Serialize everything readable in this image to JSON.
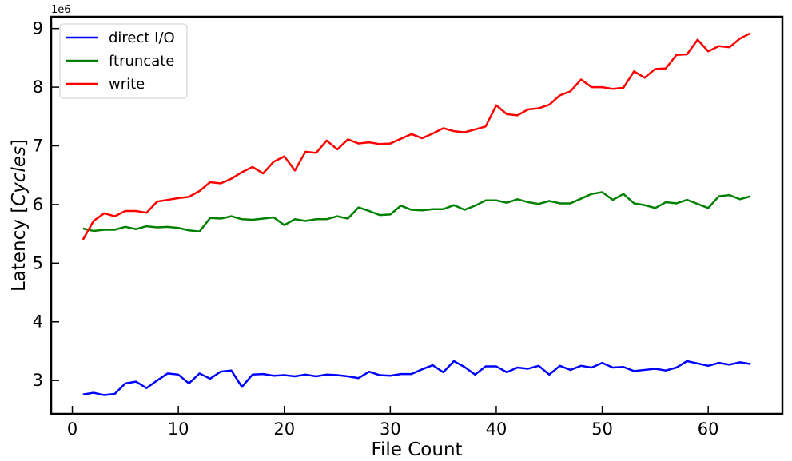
{
  "chart_data": {
    "type": "line",
    "xlabel": "File Count",
    "ylabel_main": "Latency [",
    "ylabel_italic": "Cycles",
    "ylabel_end": "]",
    "y_offset_label": "1e6",
    "xlim": [
      -2,
      67
    ],
    "ylim": [
      2.43,
      9.2
    ],
    "y_scale": 1000000,
    "xticks": [
      0,
      10,
      20,
      30,
      40,
      50,
      60
    ],
    "yticks": [
      3,
      4,
      5,
      6,
      7,
      8,
      9
    ],
    "xtick_labels": [
      "0",
      "10",
      "20",
      "30",
      "40",
      "50",
      "60"
    ],
    "ytick_labels": [
      "3",
      "4",
      "5",
      "6",
      "7",
      "8",
      "9"
    ],
    "legend_position": "top-left",
    "grid": false,
    "x": [
      1,
      2,
      3,
      4,
      5,
      6,
      7,
      8,
      9,
      10,
      11,
      12,
      13,
      14,
      15,
      16,
      17,
      18,
      19,
      20,
      21,
      22,
      23,
      24,
      25,
      26,
      27,
      28,
      29,
      30,
      31,
      32,
      33,
      34,
      35,
      36,
      37,
      38,
      39,
      40,
      41,
      42,
      43,
      44,
      45,
      46,
      47,
      48,
      49,
      50,
      51,
      52,
      53,
      54,
      55,
      56,
      57,
      58,
      59,
      60,
      61,
      62,
      63,
      64
    ],
    "series": [
      {
        "name": "direct I/O",
        "color": "#0000ff",
        "values": [
          2.76,
          2.79,
          2.75,
          2.77,
          2.95,
          2.98,
          2.87,
          3.0,
          3.12,
          3.1,
          2.95,
          3.12,
          3.03,
          3.15,
          3.17,
          2.89,
          3.1,
          3.11,
          3.08,
          3.09,
          3.07,
          3.1,
          3.07,
          3.1,
          3.09,
          3.07,
          3.04,
          3.15,
          3.09,
          3.08,
          3.11,
          3.11,
          3.19,
          3.26,
          3.14,
          3.33,
          3.23,
          3.1,
          3.24,
          3.24,
          3.14,
          3.22,
          3.2,
          3.25,
          3.1,
          3.25,
          3.18,
          3.25,
          3.22,
          3.3,
          3.22,
          3.23,
          3.16,
          3.18,
          3.2,
          3.17,
          3.22,
          3.33,
          3.29,
          3.25,
          3.3,
          3.27,
          3.31,
          3.28
        ]
      },
      {
        "name": "ftruncate",
        "color": "#008000",
        "values": [
          5.59,
          5.55,
          5.57,
          5.57,
          5.62,
          5.58,
          5.63,
          5.61,
          5.62,
          5.6,
          5.56,
          5.54,
          5.77,
          5.76,
          5.8,
          5.75,
          5.74,
          5.76,
          5.78,
          5.65,
          5.75,
          5.72,
          5.75,
          5.75,
          5.8,
          5.76,
          5.95,
          5.89,
          5.82,
          5.83,
          5.98,
          5.91,
          5.9,
          5.92,
          5.92,
          5.99,
          5.91,
          5.98,
          6.07,
          6.07,
          6.03,
          6.09,
          6.04,
          6.01,
          6.06,
          6.02,
          6.02,
          6.1,
          6.18,
          6.21,
          6.08,
          6.18,
          6.02,
          5.99,
          5.94,
          6.04,
          6.02,
          6.08,
          6.01,
          5.94,
          6.14,
          6.16,
          6.09,
          6.14
        ]
      },
      {
        "name": "write",
        "color": "#ff0000",
        "values": [
          5.4,
          5.72,
          5.85,
          5.8,
          5.89,
          5.89,
          5.86,
          6.05,
          6.08,
          6.11,
          6.13,
          6.23,
          6.38,
          6.36,
          6.44,
          6.55,
          6.64,
          6.53,
          6.73,
          6.82,
          6.58,
          6.9,
          6.88,
          7.09,
          6.94,
          7.11,
          7.04,
          7.06,
          7.03,
          7.04,
          7.12,
          7.2,
          7.13,
          7.21,
          7.3,
          7.25,
          7.23,
          7.28,
          7.33,
          7.69,
          7.54,
          7.52,
          7.62,
          7.64,
          7.7,
          7.86,
          7.93,
          8.13,
          8.0,
          8.0,
          7.97,
          7.99,
          8.27,
          8.16,
          8.31,
          8.32,
          8.55,
          8.56,
          8.81,
          8.61,
          8.7,
          8.68,
          8.83,
          8.92
        ]
      }
    ]
  }
}
